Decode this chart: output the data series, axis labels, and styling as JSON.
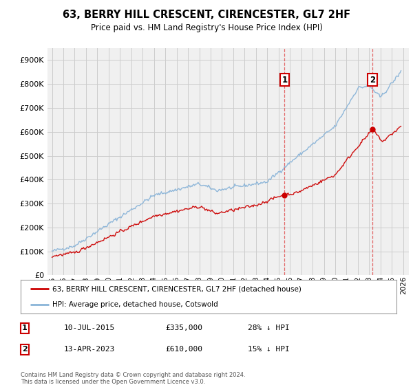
{
  "title": "63, BERRY HILL CRESCENT, CIRENCESTER, GL7 2HF",
  "subtitle": "Price paid vs. HM Land Registry's House Price Index (HPI)",
  "hpi_color": "#8ab4d8",
  "price_color": "#cc0000",
  "dashed_color": "#e05050",
  "background_color": "#f0f0f0",
  "grid_color": "#cccccc",
  "ylim": [
    0,
    950000
  ],
  "yticks": [
    0,
    100000,
    200000,
    300000,
    400000,
    500000,
    600000,
    700000,
    800000,
    900000
  ],
  "sale1_date_label": "10-JUL-2015",
  "sale1_price_label": "£335,000",
  "sale1_pct_label": "28% ↓ HPI",
  "sale1_price": 335000,
  "sale1_year": 2015.53,
  "sale2_date_label": "13-APR-2023",
  "sale2_price_label": "£610,000",
  "sale2_pct_label": "15% ↓ HPI",
  "sale2_price": 610000,
  "sale2_year": 2023.28,
  "legend_label1": "63, BERRY HILL CRESCENT, CIRENCESTER, GL7 2HF (detached house)",
  "legend_label2": "HPI: Average price, detached house, Cotswold",
  "footer": "Contains HM Land Registry data © Crown copyright and database right 2024.\nThis data is licensed under the Open Government Licence v3.0."
}
